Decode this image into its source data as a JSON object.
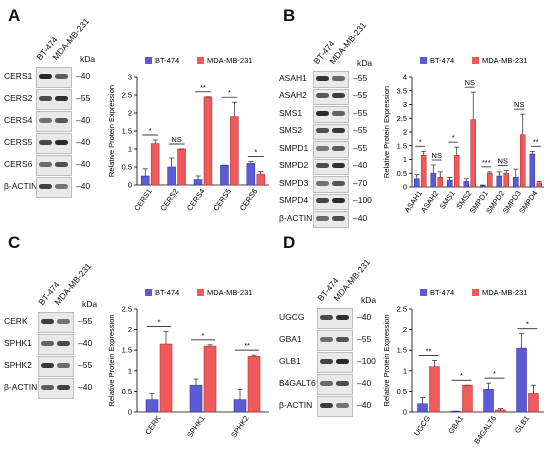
{
  "colors": {
    "bt474": "#5b5bd6",
    "mda": "#ef5b5b",
    "bt474_edge": "#3a3aa0",
    "mda_edge": "#b93333"
  },
  "panels": [
    {
      "letter": "A",
      "lanes": [
        "BT-474",
        "MDA-MB-231"
      ],
      "kda_title": "kDa",
      "blot": [
        {
          "protein": "CERS1",
          "kda": "40"
        },
        {
          "protein": "CERS2",
          "kda": "55"
        },
        {
          "protein": "CERS4",
          "kda": "40"
        },
        {
          "protein": "CERS5",
          "kda": "40"
        },
        {
          "protein": "CERS6",
          "kda": "40"
        },
        {
          "protein": "β-ACTIN",
          "kda": "40"
        }
      ]
    },
    {
      "letter": "B",
      "lanes": [
        "BT-474",
        "MDA-MB-231"
      ],
      "kda_title": "kDa",
      "blot": [
        {
          "protein": "ASAH1",
          "kda": "55"
        },
        {
          "protein": "ASAH2",
          "kda": "55"
        },
        {
          "protein": "SMS1",
          "kda": "55"
        },
        {
          "protein": "SMS2",
          "kda": "55"
        },
        {
          "protein": "SMPD1",
          "kda": "55"
        },
        {
          "protein": "SMPD2",
          "kda": "40"
        },
        {
          "protein": "SMPD3",
          "kda": "70"
        },
        {
          "protein": "SMPD4",
          "kda": "100"
        },
        {
          "protein": "β-ACTIN",
          "kda": "40"
        }
      ]
    },
    {
      "letter": "C",
      "lanes": [
        "BT-474",
        "MDA-MB-231"
      ],
      "kda_title": "kDa",
      "blot": [
        {
          "protein": "CERK",
          "kda": "55"
        },
        {
          "protein": "SPHK1",
          "kda": "40"
        },
        {
          "protein": "SPHK2",
          "kda": "55"
        },
        {
          "protein": "β-ACTIN",
          "kda": "40"
        }
      ]
    },
    {
      "letter": "D",
      "lanes": [
        "BT-474",
        "MDA-MB-231"
      ],
      "kda_title": "kDa",
      "blot": [
        {
          "protein": "UGCG",
          "kda": "40"
        },
        {
          "protein": "GBA1",
          "kda": "55"
        },
        {
          "protein": "GLB1",
          "kda": "100"
        },
        {
          "protein": "B4GALT6",
          "kda": "40"
        },
        {
          "protein": "β-ACTIN",
          "kda": "40"
        }
      ]
    }
  ],
  "chart_data": [
    {
      "type": "bar",
      "ylabel": "Relative Protein Expression",
      "ylim": [
        0,
        3
      ],
      "yticks": [
        "0",
        "0.5",
        "1",
        "1.5",
        "2",
        "2.5",
        "3"
      ],
      "categories": [
        "CERS1",
        "CERS2",
        "CERS4",
        "CERS5",
        "CERS6"
      ],
      "series": [
        {
          "name": "BT-474",
          "values": [
            0.25,
            0.5,
            0.15,
            0.55,
            0.6
          ],
          "errors": [
            0.2,
            0.25,
            0.1,
            0.0,
            0.05
          ]
        },
        {
          "name": "MDA-MB-231",
          "values": [
            1.15,
            1.0,
            2.45,
            1.9,
            0.3
          ],
          "errors": [
            0.1,
            0.0,
            0.0,
            0.4,
            0.07
          ]
        }
      ],
      "significance": [
        "*",
        "NS",
        "**",
        "*",
        "*"
      ],
      "legend": "top-left"
    },
    {
      "type": "bar",
      "ylabel": "Relative Protein Expression",
      "ylim": [
        0,
        4
      ],
      "yticks": [
        "0",
        "0.5",
        "1",
        "1.5",
        "2",
        "2.5",
        "3",
        "3.5",
        "4"
      ],
      "categories": [
        "ASAH1",
        "ASAH2",
        "SMS1",
        "SMS2",
        "SMPD1",
        "SMPD2",
        "SMPD3",
        "SMPD4"
      ],
      "series": [
        {
          "name": "BT-474",
          "values": [
            0.3,
            0.5,
            0.25,
            0.2,
            0.05,
            0.4,
            0.35,
            1.2
          ],
          "errors": [
            0.15,
            0.3,
            0.1,
            0.1,
            0.02,
            0.15,
            0.3,
            0.1
          ]
        },
        {
          "name": "MDA-MB-231",
          "values": [
            1.15,
            0.35,
            1.15,
            2.45,
            0.5,
            0.5,
            1.9,
            0.15
          ],
          "errors": [
            0.15,
            0.2,
            0.3,
            1.0,
            0.05,
            0.1,
            0.75,
            0.05
          ]
        }
      ],
      "significance": [
        "*",
        "NS",
        "*",
        "NS",
        "***",
        "NS",
        "NS",
        "**"
      ],
      "legend": "top-left"
    },
    {
      "type": "bar",
      "ylabel": "Relative Protein Expression",
      "ylim": [
        0,
        2.5
      ],
      "yticks": [
        "0",
        "0.5",
        "1",
        "1.5",
        "2",
        "2.5"
      ],
      "categories": [
        "CERK",
        "SPHK1",
        "SPHK2"
      ],
      "series": [
        {
          "name": "BT-474",
          "values": [
            0.3,
            0.65,
            0.3
          ],
          "errors": [
            0.15,
            0.15,
            0.25
          ]
        },
        {
          "name": "MDA-MB-231",
          "values": [
            1.65,
            1.6,
            1.35
          ],
          "errors": [
            0.3,
            0.03,
            0.03
          ]
        }
      ],
      "significance": [
        "*",
        "*",
        "**"
      ],
      "legend": "top-left"
    },
    {
      "type": "bar",
      "ylabel": "Relative Protein Expression",
      "ylim": [
        0,
        2.5
      ],
      "yticks": [
        "0",
        "0.5",
        "1",
        "1.5",
        "2",
        "2.5"
      ],
      "categories": [
        "UGCG",
        "GBA1",
        "B4GALT6",
        "GLB1"
      ],
      "series": [
        {
          "name": "BT-474",
          "values": [
            0.2,
            0.02,
            0.55,
            1.55
          ],
          "errors": [
            0.15,
            0.0,
            0.15,
            0.35
          ]
        },
        {
          "name": "MDA-MB-231",
          "values": [
            1.1,
            0.65,
            0.05,
            0.45
          ],
          "errors": [
            0.15,
            0.0,
            0.03,
            0.2
          ]
        }
      ],
      "significance": [
        "**",
        "*",
        "*",
        "*"
      ],
      "legend": "top-left"
    }
  ]
}
